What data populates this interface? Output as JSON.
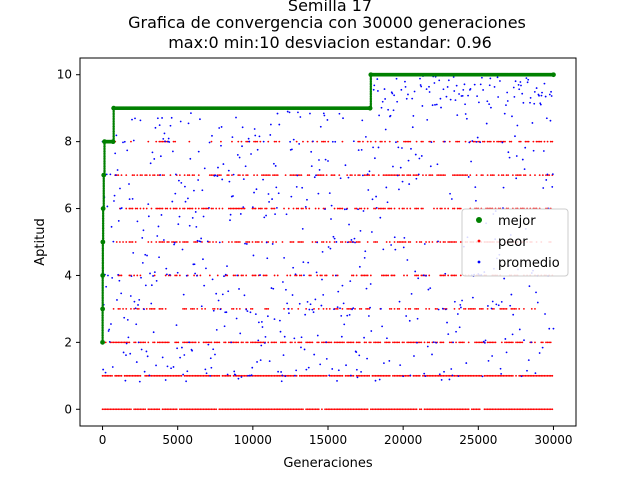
{
  "chart_data": {
    "type": "scatter",
    "title_lines": [
      "Semilla 17",
      "Grafica de convergencia con 30000 generaciones",
      "max:0 min:10 desviacion estandar: 0.96"
    ],
    "xlabel": "Generaciones",
    "ylabel": "Aptitud",
    "xlim": [
      -1500,
      31500
    ],
    "ylim": [
      -0.5,
      10.5
    ],
    "xticks": [
      0,
      5000,
      10000,
      15000,
      20000,
      25000,
      30000
    ],
    "yticks": [
      0,
      2,
      4,
      6,
      8,
      10
    ],
    "legend_position": "center-right",
    "series": [
      {
        "name": "mejor",
        "color": "#008000",
        "points": [
          [
            0,
            2
          ],
          [
            5,
            3
          ],
          [
            10,
            4
          ],
          [
            20,
            5
          ],
          [
            40,
            6
          ],
          [
            80,
            7
          ],
          [
            130,
            8
          ],
          [
            700,
            8
          ],
          [
            740,
            9
          ],
          [
            17800,
            9
          ],
          [
            17850,
            10
          ],
          [
            30000,
            10
          ]
        ]
      },
      {
        "name": "peor",
        "color": "#ff0000",
        "levels": [
          0,
          1,
          2,
          3,
          4,
          5,
          6,
          7,
          8
        ],
        "x_range": [
          0,
          30000
        ]
      },
      {
        "name": "promedio",
        "color": "#0000ff",
        "y_range": [
          0.8,
          10
        ],
        "x_range": [
          0,
          30000
        ]
      }
    ]
  }
}
